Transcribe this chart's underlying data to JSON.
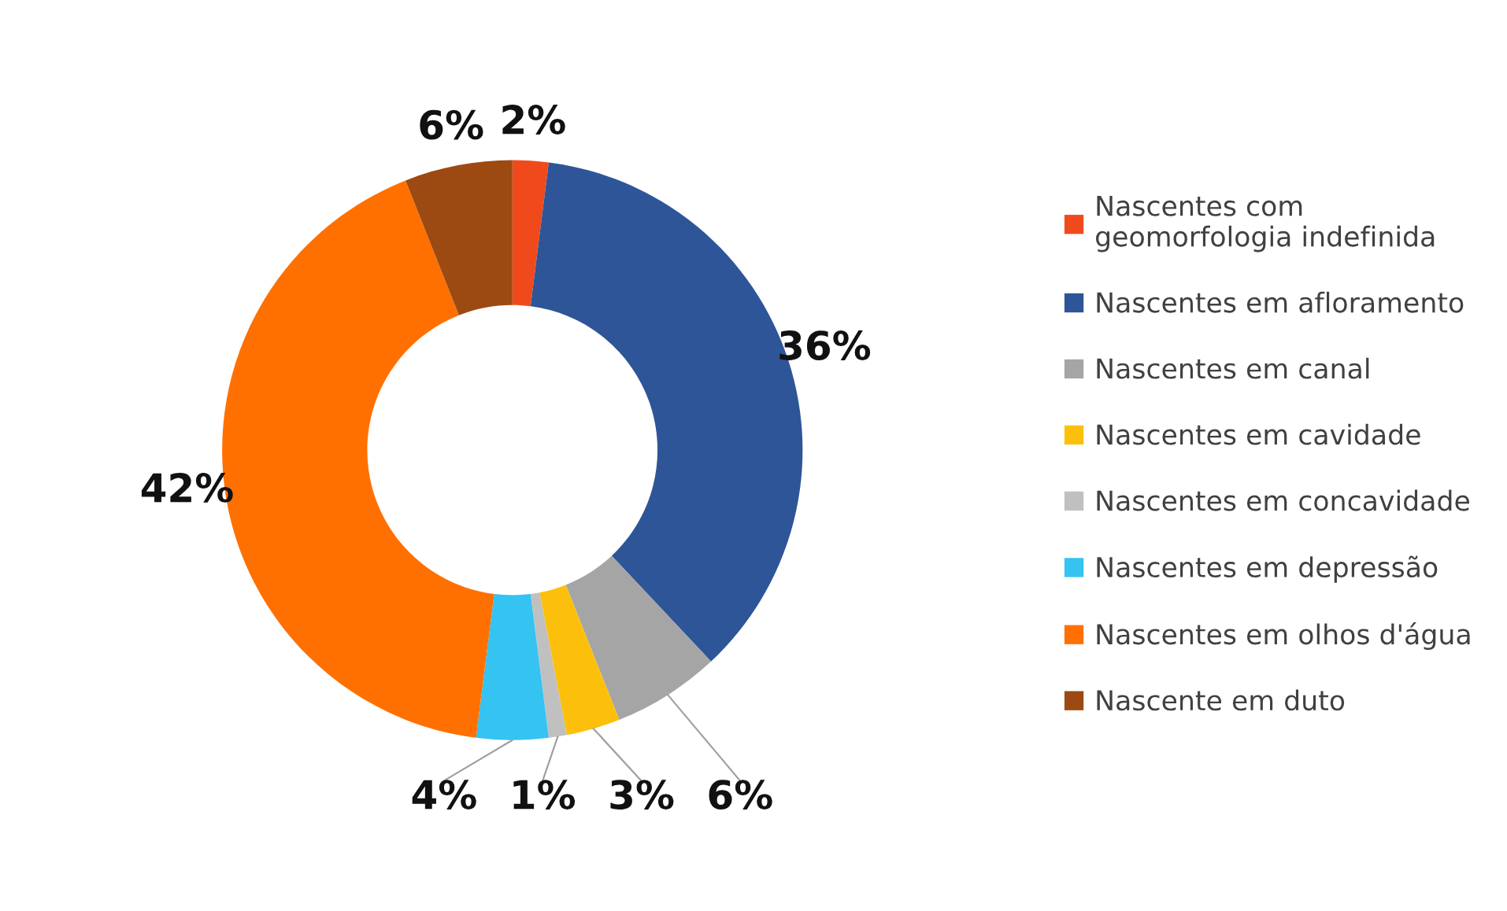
{
  "chart_data": {
    "type": "donut",
    "categories": [
      "Nascentes com\ngeomorfologia indefinida",
      "Nascentes em afloramento",
      "Nascentes em canal",
      "Nascentes em cavidade",
      "Nascentes em concavidade",
      "Nascentes em depressão",
      "Nascentes em olhos d'água",
      "Nascente em duto"
    ],
    "values": [
      2,
      36,
      6,
      3,
      1,
      4,
      42,
      6
    ],
    "colors": [
      "#f04a1c",
      "#2e5597",
      "#a5a5a5",
      "#fcc00c",
      "#c0c0c0",
      "#35c3f2",
      "#ff7000",
      "#9c4a12"
    ],
    "value_labels": [
      "2%",
      "36%",
      "6%",
      "3%",
      "1%",
      "4%",
      "42%",
      "6%"
    ],
    "legend": "right"
  }
}
